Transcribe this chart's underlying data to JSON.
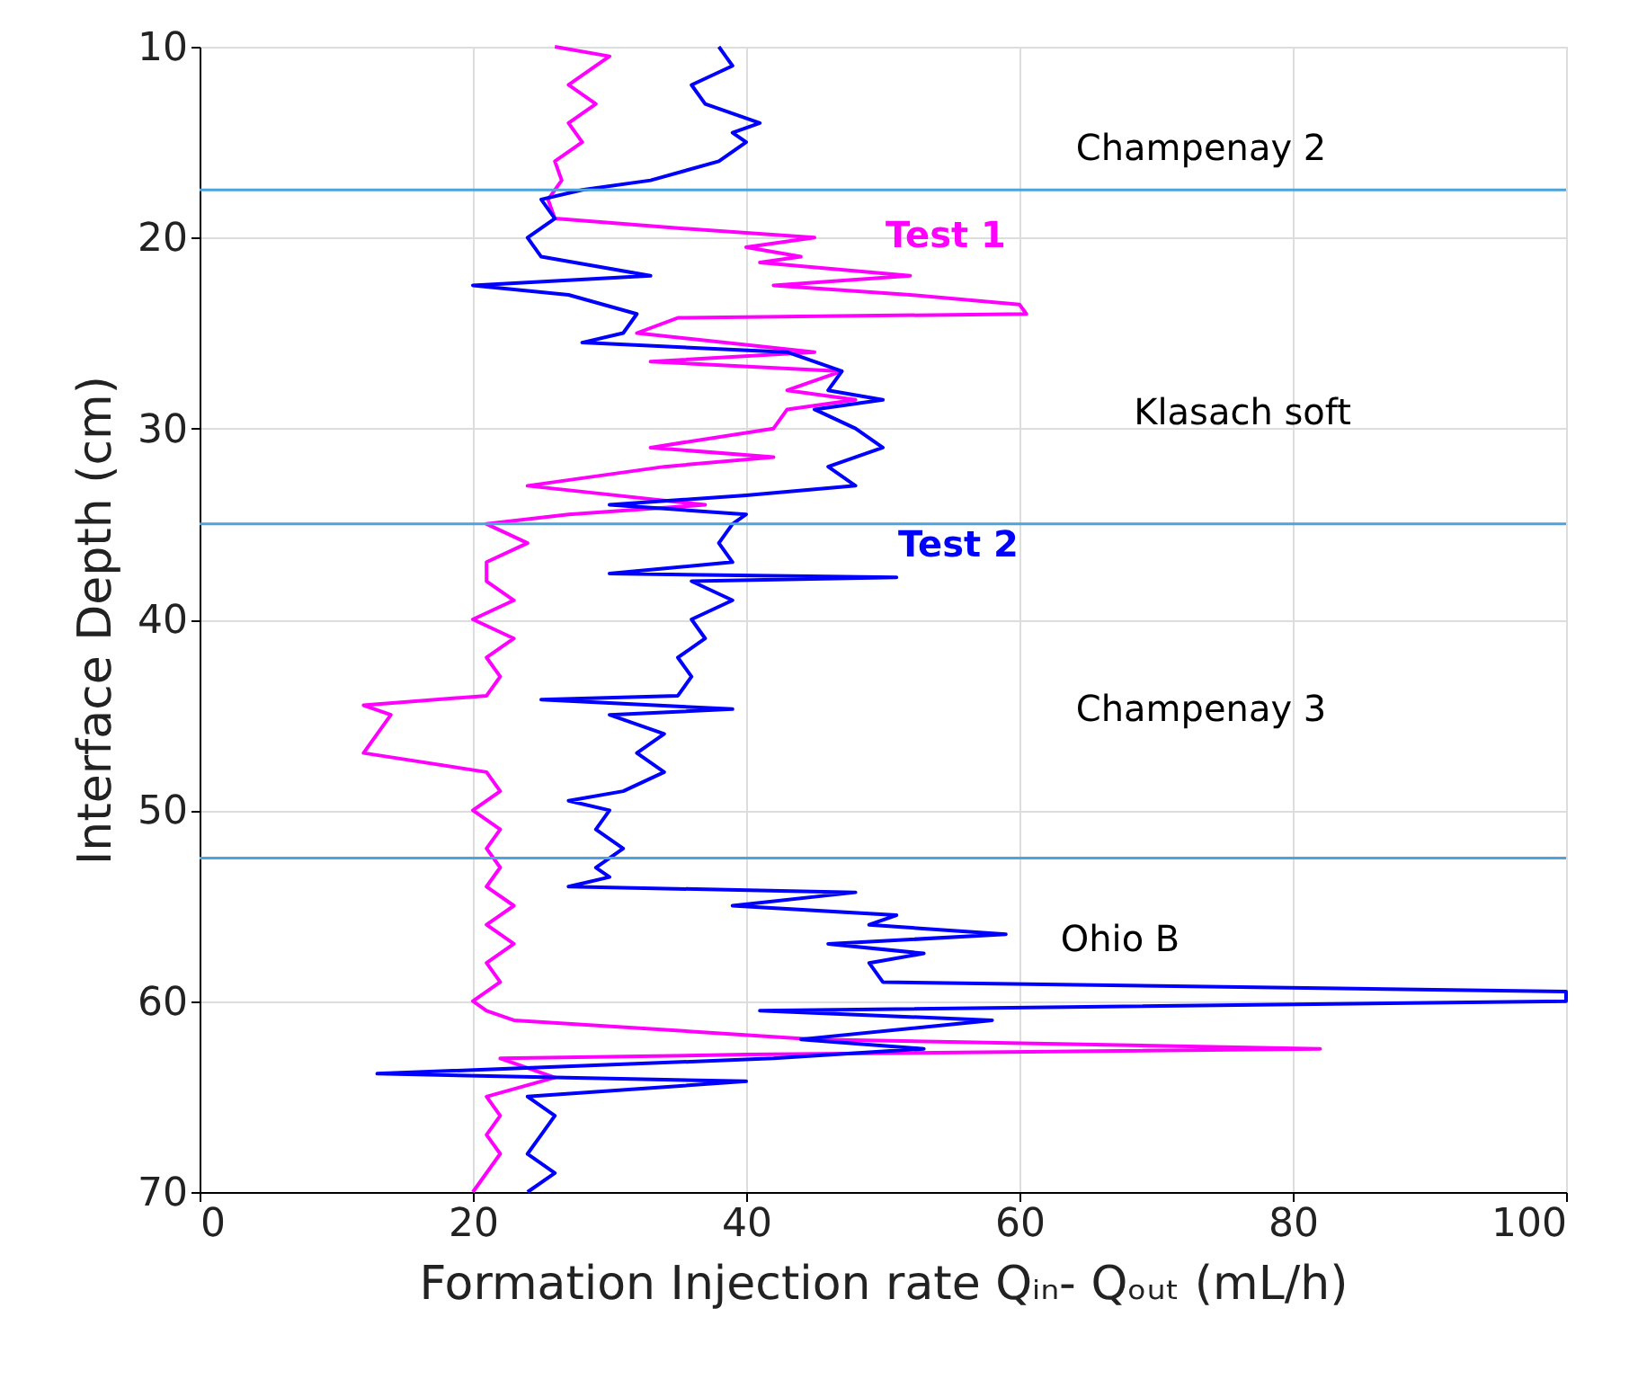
{
  "chart_data": {
    "type": "line",
    "xlabel": "Formation Injection rate Qᵢₙ- Qₒᵤₜ (mL/h)",
    "ylabel": "Interface Depth (cm)",
    "xlim": [
      0,
      100
    ],
    "xticks": [
      0,
      20,
      40,
      60,
      80,
      100
    ],
    "ylim": [
      70,
      10
    ],
    "yticks": [
      10,
      20,
      30,
      40,
      50,
      60,
      70
    ],
    "grid": true,
    "legend": false,
    "marker": "none",
    "line_style": "solid",
    "series": [
      {
        "name": "Test 1",
        "color": "#ff00ff",
        "x": [
          26,
          30,
          29,
          27,
          29,
          27,
          28,
          26,
          26.5,
          25.5,
          26,
          35,
          45,
          40,
          44,
          41,
          52,
          42,
          52,
          60,
          60.5,
          35,
          32,
          45,
          33,
          47,
          43,
          48,
          43,
          42,
          33,
          42,
          34,
          24,
          37,
          27,
          21,
          24,
          21,
          21,
          23,
          20,
          23,
          21,
          22,
          21,
          12,
          14,
          13,
          12,
          21,
          22,
          20,
          22,
          21,
          22,
          21,
          23,
          21,
          23,
          21,
          22,
          20,
          21,
          23,
          45,
          82,
          40,
          22,
          26,
          21,
          22,
          21,
          22,
          21,
          20
        ],
        "values": [
          10,
          10.5,
          11,
          12,
          13,
          14,
          15,
          16,
          17,
          18,
          19,
          19.5,
          20,
          20.5,
          21,
          21.3,
          22,
          22.5,
          23,
          23.5,
          24,
          24.2,
          25,
          26,
          26.5,
          27,
          28,
          28.5,
          29,
          30,
          31,
          31.5,
          32,
          33,
          34,
          34.5,
          35,
          36,
          37,
          38,
          39,
          40,
          41,
          42,
          43,
          44,
          44.5,
          45,
          46,
          47,
          48,
          49,
          50,
          51,
          52,
          53,
          54,
          55,
          56,
          57,
          58,
          59,
          60,
          60.5,
          61,
          62,
          62.5,
          62.8,
          63,
          64,
          65,
          66,
          67,
          68,
          69,
          70
        ]
      },
      {
        "name": "Test 2",
        "color": "#0000ff",
        "x": [
          38,
          38.5,
          39,
          36,
          37,
          41,
          39,
          40,
          38,
          33,
          28,
          25,
          26,
          24,
          25,
          33,
          20,
          27,
          32,
          31,
          28,
          43,
          47,
          46,
          50,
          45,
          48,
          50,
          46,
          48,
          40,
          30,
          40,
          39,
          38,
          39,
          30,
          51,
          36,
          39,
          36,
          37,
          35,
          36,
          35,
          25,
          39,
          30,
          34,
          32,
          34,
          31,
          27,
          30,
          29,
          31,
          29,
          30,
          27,
          48,
          39,
          51,
          49,
          59,
          46,
          53,
          49,
          50,
          100,
          100,
          41,
          58,
          44,
          53,
          42,
          13,
          40,
          24,
          26,
          25,
          24,
          26,
          24
        ],
        "values": [
          10,
          10.5,
          11,
          12,
          13,
          14,
          14.5,
          15,
          16,
          17,
          17.5,
          18,
          19,
          20,
          21,
          22,
          22.5,
          23,
          24,
          25,
          25.5,
          26,
          27,
          28,
          28.5,
          29,
          30,
          31,
          32,
          33,
          33.5,
          34,
          34.5,
          35,
          36,
          37,
          37.6,
          37.8,
          38,
          39,
          40,
          41,
          42,
          43,
          44,
          44.2,
          44.7,
          45,
          46,
          47,
          48,
          49,
          49.5,
          50,
          51,
          52,
          53,
          53.5,
          54,
          54.3,
          55,
          55.5,
          56,
          56.5,
          57,
          57.5,
          58,
          59,
          59.5,
          60,
          60.5,
          61,
          62,
          62.5,
          63,
          63.8,
          64.2,
          65,
          66,
          67,
          68,
          69,
          70
        ]
      }
    ],
    "ref_lines": [
      {
        "axis": "y",
        "value": 17.5,
        "color": "#4da3dc"
      },
      {
        "axis": "y",
        "value": 35,
        "color": "#4da3dc"
      },
      {
        "axis": "y",
        "value": 52.5,
        "color": "#4da3dc"
      }
    ],
    "annotations": [
      "Champenay 2",
      "Klasach soft",
      "Champenay 3",
      "Ohio B"
    ]
  }
}
